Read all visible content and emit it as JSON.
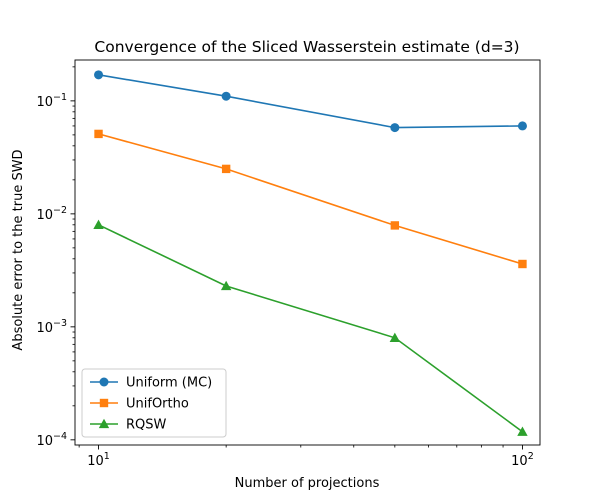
{
  "chart_data": {
    "type": "line",
    "title": "Convergence of the Sliced Wasserstein estimate (d=3)",
    "xlabel": "Number of projections",
    "ylabel": "Absolute error to the true SWD",
    "xscale": "log",
    "yscale": "log",
    "xlim": [
      8.8,
      110
    ],
    "ylim": [
      9e-05,
      0.23
    ],
    "grid": false,
    "legend_position": "lower-left",
    "x_ticks": [
      {
        "value": 10,
        "base": "10",
        "exp": "1"
      },
      {
        "value": 100,
        "base": "10",
        "exp": "2"
      }
    ],
    "y_ticks": [
      {
        "value": 0.0001,
        "base": "10",
        "exp": "−4"
      },
      {
        "value": 0.001,
        "base": "10",
        "exp": "−3"
      },
      {
        "value": 0.01,
        "base": "10",
        "exp": "−2"
      },
      {
        "value": 0.1,
        "base": "10",
        "exp": "−1"
      }
    ],
    "x": [
      10,
      20,
      50,
      100
    ],
    "series": [
      {
        "name": "Uniform (MC)",
        "color": "#1f77b4",
        "marker": "circle",
        "values": [
          0.17,
          0.11,
          0.058,
          0.06
        ]
      },
      {
        "name": "UnifOrtho",
        "color": "#ff7f0e",
        "marker": "square",
        "values": [
          0.051,
          0.025,
          0.0079,
          0.0036
        ]
      },
      {
        "name": "RQSW",
        "color": "#2ca02c",
        "marker": "triangle",
        "values": [
          0.008,
          0.0023,
          0.0008,
          0.000118
        ]
      }
    ]
  }
}
